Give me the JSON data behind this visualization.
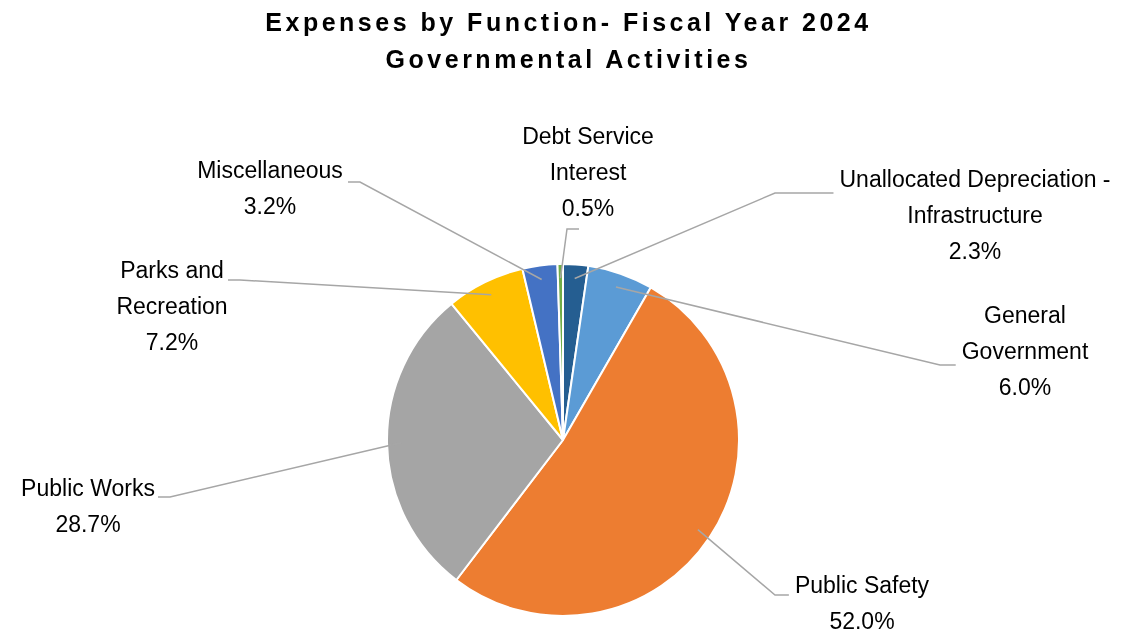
{
  "chart_data": {
    "type": "pie",
    "title": "Expenses by Function- Fiscal Year 2024",
    "subtitle": "Governmental Activities",
    "categories": [
      "Unallocated Depreciation - Infrastructure",
      "General Government",
      "Public Safety",
      "Public Works",
      "Parks and Recreation",
      "Miscellaneous",
      "Debt Service Interest"
    ],
    "values": [
      2.3,
      6.0,
      52.0,
      28.7,
      7.2,
      3.2,
      0.5
    ],
    "value_labels": [
      "2.3%",
      "6.0%",
      "52.0%",
      "28.7%",
      "7.2%",
      "3.2%",
      "0.5%"
    ],
    "colors": [
      "#255e91",
      "#5b9bd5",
      "#ed7d31",
      "#a5a5a5",
      "#ffc000",
      "#4472c4",
      "#70ad47"
    ],
    "legend": false
  }
}
